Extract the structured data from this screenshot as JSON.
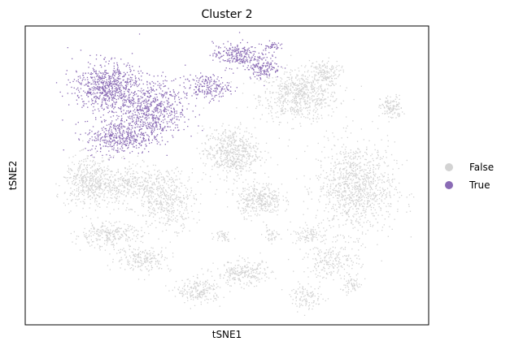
{
  "chart_data": {
    "type": "scatter",
    "title": "Cluster 2",
    "xlabel": "tSNE1",
    "ylabel": "tSNE2",
    "xticks": [],
    "yticks": [],
    "grid": false,
    "legend_position": "right",
    "series": [
      {
        "name": "False",
        "color": "#d3d3d3"
      },
      {
        "name": "True",
        "color": "#8a6bb5"
      }
    ],
    "xlim": [
      0,
      100
    ],
    "ylim": [
      0,
      100
    ],
    "clusters": [
      {
        "series": "True",
        "center": [
          20,
          80
        ],
        "spread": [
          6,
          6
        ],
        "n": 700
      },
      {
        "series": "True",
        "center": [
          31,
          72
        ],
        "spread": [
          6,
          7
        ],
        "n": 650
      },
      {
        "series": "True",
        "center": [
          23,
          63
        ],
        "spread": [
          6,
          4
        ],
        "n": 400
      },
      {
        "series": "True",
        "center": [
          45,
          80
        ],
        "spread": [
          4,
          3
        ],
        "n": 200
      },
      {
        "series": "True",
        "center": [
          52,
          91
        ],
        "spread": [
          4,
          3
        ],
        "n": 230
      },
      {
        "series": "True",
        "center": [
          59,
          87
        ],
        "spread": [
          3,
          3
        ],
        "n": 160
      },
      {
        "series": "True",
        "center": [
          61,
          94
        ],
        "spread": [
          1.5,
          1
        ],
        "n": 40
      },
      {
        "series": "False",
        "center": [
          68,
          77
        ],
        "spread": [
          7,
          6
        ],
        "n": 650
      },
      {
        "series": "False",
        "center": [
          74,
          85
        ],
        "spread": [
          3,
          3
        ],
        "n": 150
      },
      {
        "series": "False",
        "center": [
          91,
          73
        ],
        "spread": [
          2,
          3
        ],
        "n": 120
      },
      {
        "series": "False",
        "center": [
          82,
          46
        ],
        "spread": [
          7,
          11
        ],
        "n": 1000
      },
      {
        "series": "False",
        "center": [
          51,
          58
        ],
        "spread": [
          5,
          6
        ],
        "n": 550
      },
      {
        "series": "False",
        "center": [
          58,
          42
        ],
        "spread": [
          4,
          4
        ],
        "n": 330
      },
      {
        "series": "False",
        "center": [
          15,
          48
        ],
        "spread": [
          4,
          6
        ],
        "n": 320
      },
      {
        "series": "False",
        "center": [
          23,
          47
        ],
        "spread": [
          8,
          5
        ],
        "n": 450
      },
      {
        "series": "False",
        "center": [
          35,
          42
        ],
        "spread": [
          5,
          7
        ],
        "n": 420
      },
      {
        "series": "False",
        "center": [
          20,
          30
        ],
        "spread": [
          6,
          3
        ],
        "n": 260
      },
      {
        "series": "False",
        "center": [
          29,
          22
        ],
        "spread": [
          5,
          3
        ],
        "n": 200
      },
      {
        "series": "False",
        "center": [
          43,
          11
        ],
        "spread": [
          4,
          3
        ],
        "n": 200
      },
      {
        "series": "False",
        "center": [
          54,
          17
        ],
        "spread": [
          5,
          3
        ],
        "n": 240
      },
      {
        "series": "False",
        "center": [
          76,
          21
        ],
        "spread": [
          5,
          4
        ],
        "n": 200
      },
      {
        "series": "False",
        "center": [
          70,
          9
        ],
        "spread": [
          3,
          3
        ],
        "n": 110
      },
      {
        "series": "False",
        "center": [
          81,
          13
        ],
        "spread": [
          2,
          2
        ],
        "n": 60
      },
      {
        "series": "False",
        "center": [
          70,
          30
        ],
        "spread": [
          3,
          2
        ],
        "n": 90
      },
      {
        "series": "False",
        "center": [
          61,
          30
        ],
        "spread": [
          1.5,
          1.5
        ],
        "n": 40
      },
      {
        "series": "False",
        "center": [
          49,
          30
        ],
        "spread": [
          1.5,
          1.5
        ],
        "n": 40
      }
    ]
  }
}
